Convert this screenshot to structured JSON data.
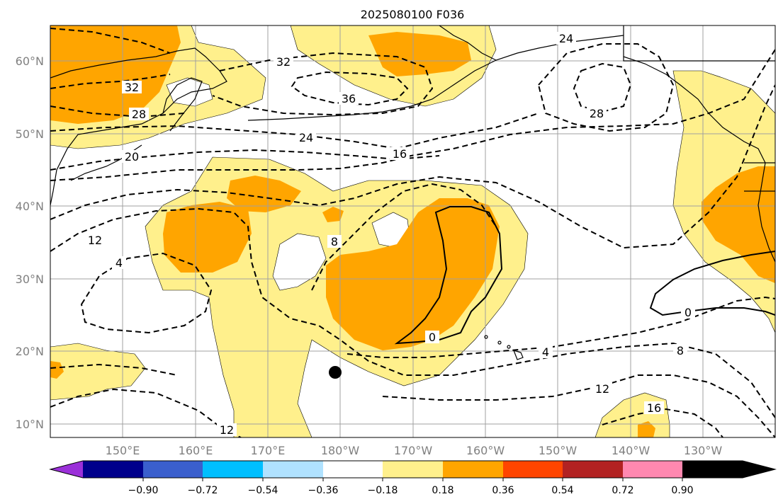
{
  "title": "2025080100 F036",
  "lat_labels": [
    "60°N",
    "50°N",
    "40°N",
    "30°N",
    "20°N",
    "10°N"
  ],
  "lon_labels": [
    "150°E",
    "160°E",
    "170°E",
    "180°W",
    "170°W",
    "160°W",
    "150°W",
    "140°W",
    "130°W"
  ],
  "colorbar": {
    "colors": [
      "#9b30d9",
      "#00008b",
      "#3a5fcd",
      "#00bfff",
      "#b0e2ff",
      "#ffffff",
      "#fff08c",
      "#ffa500",
      "#ff4500",
      "#b22222",
      "#ff88b0"
    ],
    "tick_labels": [
      "−0.90",
      "−0.72",
      "−0.54",
      "−0.36",
      "−0.18",
      "0.18",
      "0.36",
      "0.54",
      "0.72",
      "0.90"
    ]
  },
  "contour_labels": [
    "32",
    "32",
    "36",
    "28",
    "24",
    "20",
    "16",
    "24",
    "28",
    "12",
    "4",
    "8",
    "0",
    "0",
    "4",
    "8",
    "12",
    "16",
    "12"
  ],
  "marker": "filled-circle",
  "shading_colors": {
    "light": "#fff08c",
    "medium": "#ffa500"
  }
}
